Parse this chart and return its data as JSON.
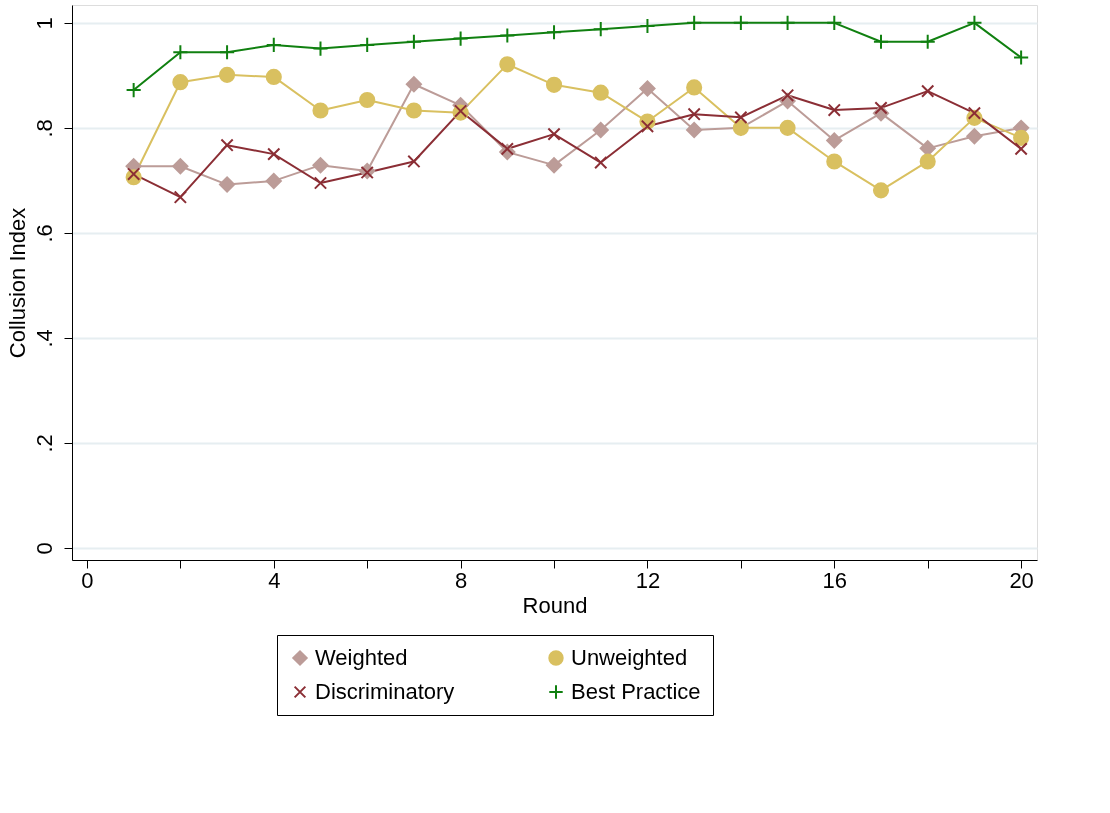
{
  "chart_data": {
    "type": "line",
    "xlabel": "Round",
    "ylabel": "Collusion Index",
    "x": [
      1,
      2,
      3,
      4,
      5,
      6,
      7,
      8,
      9,
      10,
      11,
      12,
      13,
      14,
      15,
      16,
      17,
      18,
      19,
      20
    ],
    "series": [
      {
        "name": "Weighted",
        "color": "#bc9c98",
        "marker": "diamond",
        "values": [
          0.727,
          0.727,
          0.692,
          0.699,
          0.729,
          0.718,
          0.883,
          0.843,
          0.754,
          0.729,
          0.796,
          0.875,
          0.796,
          0.8,
          0.851,
          0.776,
          0.828,
          0.761,
          0.784,
          0.8
        ]
      },
      {
        "name": "Unweighted",
        "color": "#d9c060",
        "marker": "circle",
        "values": [
          0.706,
          0.887,
          0.901,
          0.897,
          0.833,
          0.853,
          0.833,
          0.829,
          0.921,
          0.882,
          0.867,
          0.812,
          0.877,
          0.8,
          0.8,
          0.736,
          0.681,
          0.736,
          0.819,
          0.781
        ]
      },
      {
        "name": "Discriminatory",
        "color": "#8b2e35",
        "marker": "x",
        "values": [
          0.712,
          0.668,
          0.767,
          0.75,
          0.695,
          0.715,
          0.736,
          0.832,
          0.76,
          0.788,
          0.734,
          0.803,
          0.826,
          0.82,
          0.862,
          0.834,
          0.838,
          0.87,
          0.828,
          0.76
        ]
      },
      {
        "name": "Best Practice",
        "color": "#108010",
        "marker": "cross",
        "values": [
          0.872,
          0.944,
          0.944,
          0.958,
          0.951,
          0.958,
          0.964,
          0.97,
          0.976,
          0.982,
          0.988,
          0.994,
          1,
          1,
          1,
          1,
          0.964,
          0.964,
          1,
          0.934
        ]
      }
    ],
    "xlim": [
      -0.32,
      20.34
    ],
    "ylim": [
      -0.023,
      1.034
    ],
    "xticks": [
      0,
      {
        "value": 2,
        "label": null
      },
      4,
      {
        "value": 6,
        "label": null
      },
      8,
      {
        "value": 10,
        "label": null
      },
      12,
      {
        "value": 14,
        "label": null
      },
      16,
      {
        "value": 18,
        "label": null
      },
      20
    ],
    "yticks": [
      0,
      {
        "value": 0.2,
        "label": ".2"
      },
      {
        "value": 0.4,
        "label": ".4"
      },
      {
        "value": 0.6,
        "label": ".6"
      },
      {
        "value": 0.8,
        "label": ".8"
      },
      1
    ],
    "grid": "y",
    "legend": "bottom",
    "line_style": "solid"
  }
}
